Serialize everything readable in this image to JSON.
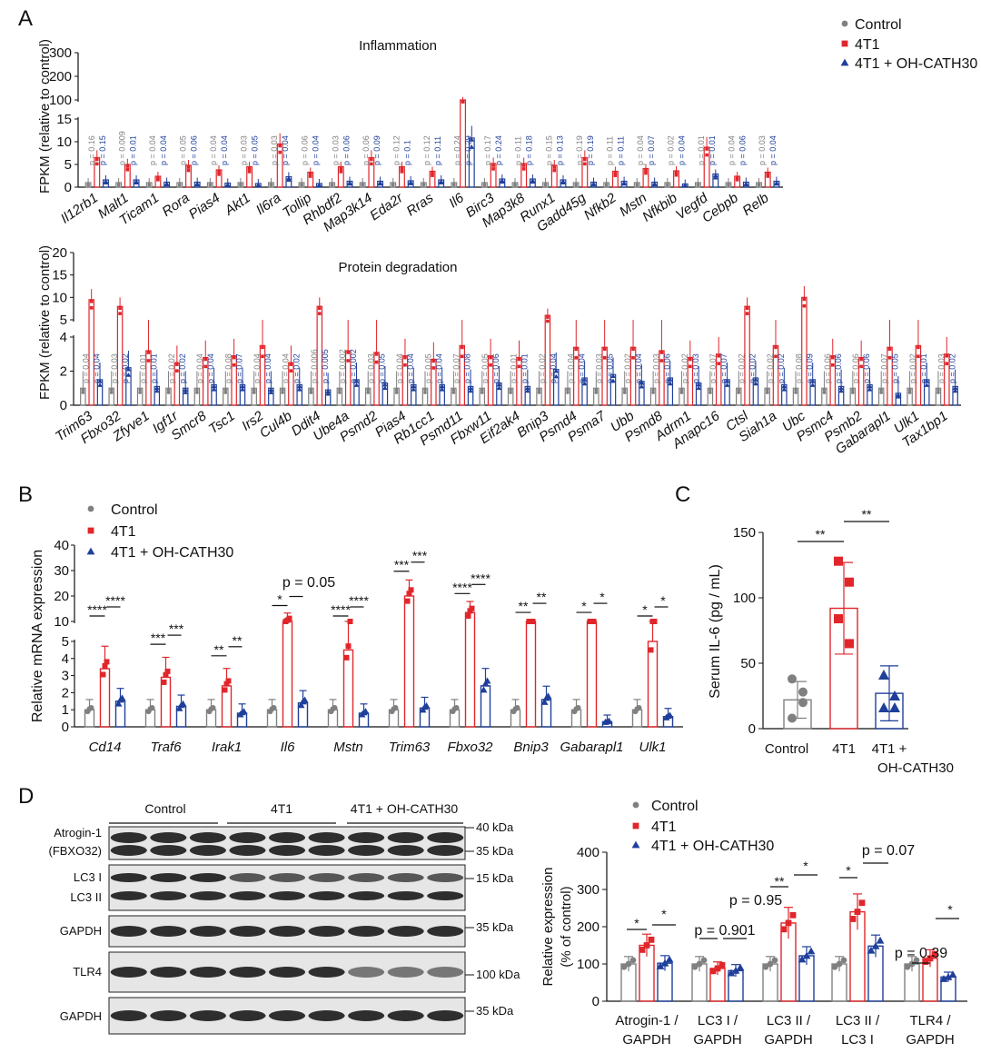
{
  "panel_labels": {
    "a": "A",
    "b": "B",
    "c": "C",
    "d": "D"
  },
  "colors": {
    "control": "#808080",
    "tumor": "#e0262b",
    "treated": "#1f3f9a",
    "axis": "#111111"
  },
  "legend_labels": {
    "control": "Control",
    "tumor": "4T1",
    "treated": "4T1 + OH-CATH30"
  },
  "chart_data": [
    {
      "id": "A_inflammation",
      "type": "bar",
      "title": "Inflammation",
      "ylabel": "FPKM (relative to control)",
      "y_lower_ticks": [
        "0",
        "5",
        "10",
        "15"
      ],
      "y_upper_ticks": [
        "100",
        "200",
        "300"
      ],
      "categories": [
        "Il12rb1",
        "Malt1",
        "Ticam1",
        "Rora",
        "Pias4",
        "Akt1",
        "Il6ra",
        "Tollip",
        "Rhbdf2",
        "Map3k14",
        "Eda2r",
        "Rras",
        "Il6",
        "Birc3",
        "Map3k8",
        "Runx1",
        "Gadd45g",
        "Nfkb2",
        "Mstn",
        "Nfkbib",
        "Vegfd",
        "Cebpb",
        "Relb"
      ],
      "series": [
        {
          "name": "Control",
          "values": [
            1,
            1,
            1,
            1,
            1,
            1,
            1,
            1,
            1,
            1,
            1,
            1,
            1,
            1,
            1,
            1,
            1,
            1,
            1,
            1,
            1,
            1,
            1
          ]
        },
        {
          "name": "4T1",
          "values": [
            6.5,
            5,
            2.4,
            4.8,
            3.8,
            4.5,
            9.5,
            3.3,
            4.5,
            6.5,
            4.5,
            3.5,
            90,
            5.2,
            5.2,
            4.8,
            6.5,
            3.5,
            4.1,
            3.6,
            8.8,
            2.4,
            3.3
          ]
        },
        {
          "name": "4T1 + OH-CATH30",
          "values": [
            1.6,
            1.6,
            1.1,
            1.1,
            0.9,
            0.8,
            2.3,
            0.8,
            1.3,
            1.3,
            1.4,
            1.6,
            10.8,
            1.8,
            1.8,
            1.6,
            1.1,
            1.3,
            1.1,
            0.7,
            2.9,
            1.1,
            1.3
          ]
        }
      ],
      "p_control": [
        "p = 0.16",
        "p = 0.009",
        "p = 0.04",
        "p = 0.05",
        "p = 0.04",
        "p = 0.03",
        "p = 0.03",
        "p = 0.06",
        "p = 0.03",
        "p = 0.06",
        "p = 0.12",
        "p = 0.12",
        "p = 0.24",
        "p = 0.17",
        "p = 0.11",
        "p = 0.15",
        "p = 0.19",
        "p = 0.11",
        "p = 0.04",
        "p = 0.02",
        "p = 0.01",
        "p = 0.04",
        "p = 0.03"
      ],
      "p_treated": [
        "p = 0.15",
        "p = 0.01",
        "p = 0.04",
        "p = 0.06",
        "p = 0.04",
        "p = 0.05",
        "p = 0.04",
        "p = 0.04",
        "p = 0.06",
        "p = 0.09",
        "p = 0.1",
        "p = 0.11",
        "p = 0.29",
        "p = 0.24",
        "p = 0.18",
        "p = 0.13",
        "p = 0.19",
        "p = 0.11",
        "p = 0.07",
        "p = 0.04",
        "p = 0.01",
        "p = 0.06",
        "p = 0.04"
      ]
    },
    {
      "id": "A_protein",
      "type": "bar",
      "title": "Protein degradation",
      "ylabel": "FPKM (relative to control)",
      "y_lower_ticks": [
        "0",
        "2",
        "4"
      ],
      "y_upper_ticks": [
        "5",
        "10",
        "15",
        "20"
      ],
      "categories": [
        "Trim63",
        "Fbxo32",
        "Zfyve1",
        "Igf1r",
        "Smcr8",
        "Tsc1",
        "Irs2",
        "Cul4b",
        "Ddit4",
        "Ube4a",
        "Psmd2",
        "Pias4",
        "Rb1cc1",
        "Psmd11",
        "Fbxw11",
        "Eif2ak4",
        "Bnip3",
        "Psmd4",
        "Psma7",
        "Ubb",
        "Psmd8",
        "Adrm1",
        "Anapc16",
        "Ctsl",
        "Siah1a",
        "Ubc",
        "Psmc4",
        "Psmb2",
        "Gabarapl1",
        "Ulk1",
        "Tax1bp1"
      ],
      "series": [
        {
          "name": "Control",
          "values": [
            1,
            1,
            1,
            1,
            1,
            1,
            1,
            1,
            1,
            1,
            1,
            1,
            1,
            1,
            1,
            1,
            1,
            1,
            1,
            1,
            1,
            1,
            1,
            1,
            1,
            1,
            1,
            1,
            1,
            1,
            1
          ]
        },
        {
          "name": "4T1",
          "values": [
            9.5,
            8,
            3.2,
            2.5,
            2.8,
            2.9,
            3.5,
            2.5,
            8,
            3.2,
            3.1,
            2.9,
            2.7,
            3.5,
            2.9,
            2.8,
            6,
            3.4,
            3.4,
            3.4,
            3.2,
            2.8,
            3,
            8,
            3.5,
            10,
            2.9,
            2.8,
            3.4,
            3.5,
            3
          ]
        },
        {
          "name": "4T1 + OH-CATH30",
          "values": [
            1.5,
            2.2,
            1.1,
            1,
            1.2,
            1.2,
            1,
            1.2,
            0.9,
            1.5,
            1.3,
            1.2,
            1.2,
            1.1,
            1.3,
            1.1,
            2.1,
            1.6,
            1.8,
            1.4,
            1.6,
            1.3,
            1.5,
            1.6,
            1.2,
            1.5,
            1.1,
            1.2,
            0.7,
            1.5,
            1.1
          ]
        }
      ],
      "p_control": [
        "p = 0.04",
        "p = 0.03",
        "p = 0.01",
        "p = 0.02",
        "p = 0.04",
        "p = 0.08",
        "p = 0.04",
        "p = 0.04",
        "p = 0.006",
        "p = 0.002",
        "p = 0.03",
        "p = 0.04",
        "p = 0.05",
        "p = 0.07",
        "p = 0.05",
        "p = 0.01",
        "p = 0.02",
        "p = 0.04",
        "p = 0.03",
        "p = 0.02",
        "p = 0.03",
        "p = 0.02",
        "p = 0.07",
        "p = 0.02",
        "p = 0.02",
        "p = 0.08",
        "p = 0.06",
        "p = 0.06",
        "p = 0.07",
        "p = 0.02",
        "p = 0.03"
      ],
      "p_treated": [
        "p = 0.04",
        "p = 0.02",
        "p = 0.01",
        "p = 0.02",
        "p = 0.04",
        "p = 0.07",
        "p = 0.04",
        "p = 0.02",
        "p = 0.005",
        "p = 0.002",
        "p = 0.05",
        "p = 0.04",
        "p = 0.04",
        "p = 0.08",
        "p = 0.06",
        "p = 0.01",
        "p = 0.04",
        "p = 0.04",
        "p = 0.05",
        "p = 0.04",
        "p = 0.06",
        "p = 0.03",
        "p = 0.07",
        "p = 0.02",
        "p = 0.02",
        "p = 0.09",
        "p = 0.06",
        "p = 0.06",
        "p = 0.05",
        "p = 0.01",
        "p = 0.02"
      ]
    },
    {
      "id": "B",
      "type": "bar",
      "ylabel": "Relative mRNA expression",
      "y_lower_ticks": [
        "0",
        "1",
        "2",
        "3",
        "4",
        "5"
      ],
      "y_upper_ticks": [
        "10",
        "20",
        "30",
        "40"
      ],
      "categories": [
        "Cd14",
        "Traf6",
        "Irak1",
        "Il6",
        "Mstn",
        "Trim63",
        "Fbxo32",
        "Bnip3",
        "Gabarapl1",
        "Ulk1"
      ],
      "series": [
        {
          "name": "Control",
          "values": [
            1,
            1,
            1,
            1,
            1,
            1,
            1,
            1,
            1,
            1
          ]
        },
        {
          "name": "4T1",
          "values": [
            3.4,
            2.9,
            2.4,
            10,
            4.5,
            20,
            13.5,
            8,
            8,
            5
          ]
        },
        {
          "name": "4T1 + OH-CATH30",
          "values": [
            1.5,
            1.2,
            0.8,
            1.4,
            0.8,
            1.1,
            2.4,
            1.6,
            0.3,
            0.6
          ]
        }
      ],
      "sig_control": [
        "****",
        "***",
        "**",
        "*",
        "****",
        "***",
        "****",
        "**",
        "*",
        "*"
      ],
      "sig_treated": [
        "****",
        "***",
        "**",
        "",
        "****",
        "***",
        "****",
        "**",
        "*",
        "*"
      ],
      "extra_note": "p = 0.05"
    },
    {
      "id": "C",
      "type": "bar",
      "ylabel": "Serum IL-6 (pg / mL)",
      "ylim": [
        0,
        150
      ],
      "y_ticks": [
        "0",
        "50",
        "100",
        "150"
      ],
      "categories": [
        "Control",
        "4T1",
        "4T1 + OH-CATH30"
      ],
      "values": [
        22,
        92,
        27
      ],
      "errors": [
        14,
        35,
        21
      ],
      "points": [
        [
          38,
          20,
          8,
          28
        ],
        [
          128,
          112,
          84,
          65
        ],
        [
          41,
          25,
          16,
          16
        ]
      ],
      "sig": [
        "**",
        "**"
      ]
    },
    {
      "id": "D",
      "type": "bar",
      "ylabel": "Relative expression (% of control)",
      "ylim": [
        0,
        400
      ],
      "y_ticks": [
        "0",
        "100",
        "200",
        "300",
        "400"
      ],
      "categories": [
        "Atrogin-1 / GAPDH",
        "LC3 I / GAPDH",
        "LC3 II / GAPDH",
        "LC3 II / LC3 I",
        "TLR4 / GAPDH"
      ],
      "series": [
        {
          "name": "Control",
          "values": [
            100,
            100,
            100,
            100,
            100
          ]
        },
        {
          "name": "4T1",
          "values": [
            150,
            88,
            210,
            240,
            115
          ]
        },
        {
          "name": "4T1 + OH-CATH30",
          "values": [
            102,
            82,
            122,
            148,
            65
          ]
        }
      ],
      "annotations": [
        "*",
        "*",
        "p = 0.901",
        "p = 0.95",
        "**",
        "*",
        "*",
        "p = 0.07",
        "p = 0.39",
        "*"
      ]
    }
  ],
  "blot": {
    "groups": [
      "Control",
      "4T1",
      "4T1 + OH-CATH30"
    ],
    "rows": [
      {
        "label": "Atrogin-1 (FBXO32)",
        "markers": [
          "40 kDa",
          "35 kDa"
        ]
      },
      {
        "label": "LC3 I LC3 II",
        "markers": [
          "15 kDa"
        ]
      },
      {
        "label": "GAPDH",
        "markers": [
          "35 kDa"
        ]
      },
      {
        "label": "TLR4",
        "markers": [
          "100 kDa"
        ]
      },
      {
        "label": "GAPDH",
        "markers": [
          "35 kDa"
        ]
      }
    ]
  }
}
